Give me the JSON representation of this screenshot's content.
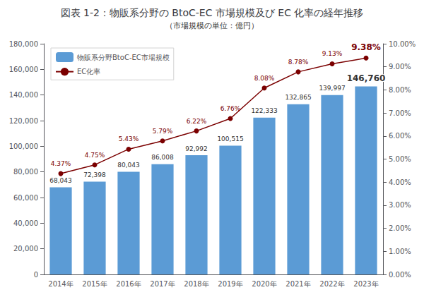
{
  "chart_data": {
    "type": "bar",
    "title": "図表 1-2：物販系分野の BtoC-EC 市場規模及び EC 化率の経年推移",
    "subtitle": "（市場規模の単位：億円）",
    "categories": [
      "2014年",
      "2015年",
      "2016年",
      "2017年",
      "2018年",
      "2019年",
      "2020年",
      "2021年",
      "2022年",
      "2023年"
    ],
    "series": [
      {
        "name": "物販系分野BtoC-EC市場規模",
        "type": "bar",
        "color": "#5B9BD5",
        "values": [
          68043,
          72398,
          80043,
          86008,
          92992,
          100515,
          122333,
          132865,
          139997,
          146760
        ],
        "value_labels": [
          "68,043",
          "72,398",
          "80,043",
          "86,008",
          "92,992",
          "100,515",
          "122,333",
          "132,865",
          "139,997",
          "146,760"
        ]
      },
      {
        "name": "EC化率",
        "type": "line",
        "axis": "y2",
        "color": "#7B0000",
        "marker": "circle",
        "values": [
          4.37,
          4.75,
          5.43,
          5.79,
          6.22,
          6.76,
          8.08,
          8.78,
          9.13,
          9.38
        ],
        "value_labels": [
          "4.37%",
          "4.75%",
          "5.43%",
          "5.79%",
          "6.22%",
          "6.76%",
          "8.08%",
          "8.78%",
          "9.13%",
          "9.38%"
        ]
      }
    ],
    "ylim": [
      0,
      180000
    ],
    "yticks": [
      0,
      {
        "value": 20000,
        "label": "20,000"
      },
      {
        "value": 40000,
        "label": "40,000"
      },
      {
        "value": 60000,
        "label": "60,000"
      },
      {
        "value": 80000,
        "label": "80,000"
      },
      {
        "value": 100000,
        "label": "100,000"
      },
      {
        "value": 120000,
        "label": "120,000"
      },
      {
        "value": 140000,
        "label": "140,000"
      },
      {
        "value": 160000,
        "label": "160,000"
      },
      {
        "value": 180000,
        "label": "180,000"
      }
    ],
    "y2lim": [
      0.0,
      10.0
    ],
    "y2ticks": [
      {
        "value": 0.0,
        "label": "0.00%"
      },
      {
        "value": 1.0,
        "label": "1.00%"
      },
      {
        "value": 2.0,
        "label": "2.00%"
      },
      {
        "value": 3.0,
        "label": "3.00%"
      },
      {
        "value": 4.0,
        "label": "4.00%"
      },
      {
        "value": 5.0,
        "label": "5.00%"
      },
      {
        "value": 6.0,
        "label": "6.00%"
      },
      {
        "value": 7.0,
        "label": "7.00%"
      },
      {
        "value": 8.0,
        "label": "8.00%"
      },
      {
        "value": 9.0,
        "label": "9.00%"
      },
      {
        "value": 10.0,
        "label": "10.00%"
      }
    ],
    "grid": false,
    "legend": "upper left",
    "data_labels": true
  }
}
